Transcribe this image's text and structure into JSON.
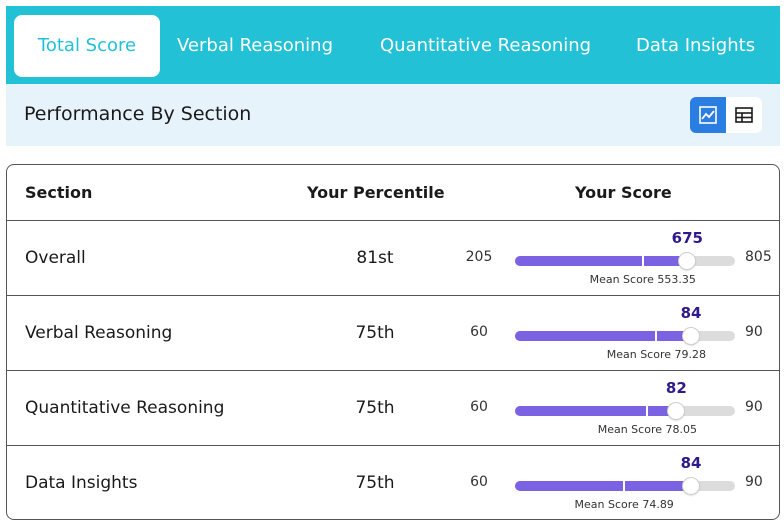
{
  "tabs": [
    {
      "label": "Total Score",
      "active": true
    },
    {
      "label": "Verbal Reasoning",
      "active": false
    },
    {
      "label": "Quantitative Reasoning",
      "active": false
    },
    {
      "label": "Data Insights",
      "active": false
    }
  ],
  "section_header": {
    "title": "Performance By Section",
    "view_toggle": {
      "active": "chart",
      "options": [
        "chart-icon",
        "table-icon"
      ]
    }
  },
  "table": {
    "headers": {
      "section": "Section",
      "percentile": "Your Percentile",
      "score": "Your Score"
    },
    "rows": [
      {
        "section": "Overall",
        "percentile": "81st",
        "min": "205",
        "max": "805",
        "score": "675",
        "mean_label": "Mean Score 553.35",
        "score_value": 675,
        "mean_value": 553.35,
        "range": [
          205,
          805
        ]
      },
      {
        "section": "Verbal Reasoning",
        "percentile": "75th",
        "min": "60",
        "max": "90",
        "score": "84",
        "mean_label": "Mean Score 79.28",
        "score_value": 84,
        "mean_value": 79.28,
        "range": [
          60,
          90
        ]
      },
      {
        "section": "Quantitative Reasoning",
        "percentile": "75th",
        "min": "60",
        "max": "90",
        "score": "82",
        "mean_label": "Mean Score 78.05",
        "score_value": 82,
        "mean_value": 78.05,
        "range": [
          60,
          90
        ]
      },
      {
        "section": "Data Insights",
        "percentile": "75th",
        "min": "60",
        "max": "90",
        "score": "84",
        "mean_label": "Mean Score 74.89",
        "score_value": 84,
        "mean_value": 74.89,
        "range": [
          60,
          90
        ]
      }
    ]
  },
  "colors": {
    "tab_bar": "#22c1d6",
    "header_band": "#e6f3fb",
    "bar_fill": "#7b62e3",
    "bar_track": "#dcdcdc",
    "score_text": "#2e1a8a",
    "toggle_active": "#2a7de1"
  }
}
